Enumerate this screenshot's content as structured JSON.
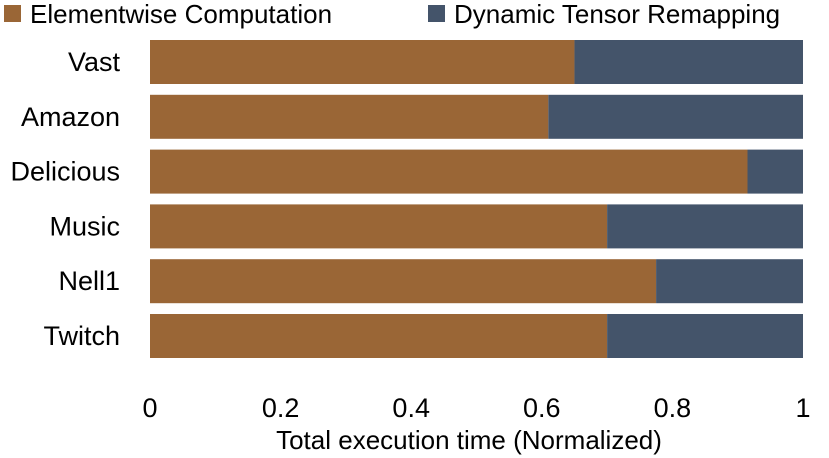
{
  "chart_data": {
    "type": "bar",
    "orientation": "horizontal",
    "stacked": true,
    "categories": [
      "Vast",
      "Amazon",
      "Delicious",
      "Music",
      "Nell1",
      "Twitch"
    ],
    "series": [
      {
        "name": "Elementwise Computation",
        "color": "#9a6636",
        "values": [
          0.65,
          0.61,
          0.915,
          0.7,
          0.775,
          0.7
        ]
      },
      {
        "name": "Dynamic Tensor Remapping",
        "color": "#44546a",
        "values": [
          0.35,
          0.39,
          0.085,
          0.3,
          0.225,
          0.3
        ]
      }
    ],
    "title": "",
    "xlabel": "Total execution time (Normalized)",
    "ylabel": "",
    "xlim": [
      0,
      1
    ],
    "xticks": [
      "0",
      "0.2",
      "0.4",
      "0.6",
      "0.8",
      "1"
    ],
    "grid": false,
    "legend_position": "top"
  }
}
